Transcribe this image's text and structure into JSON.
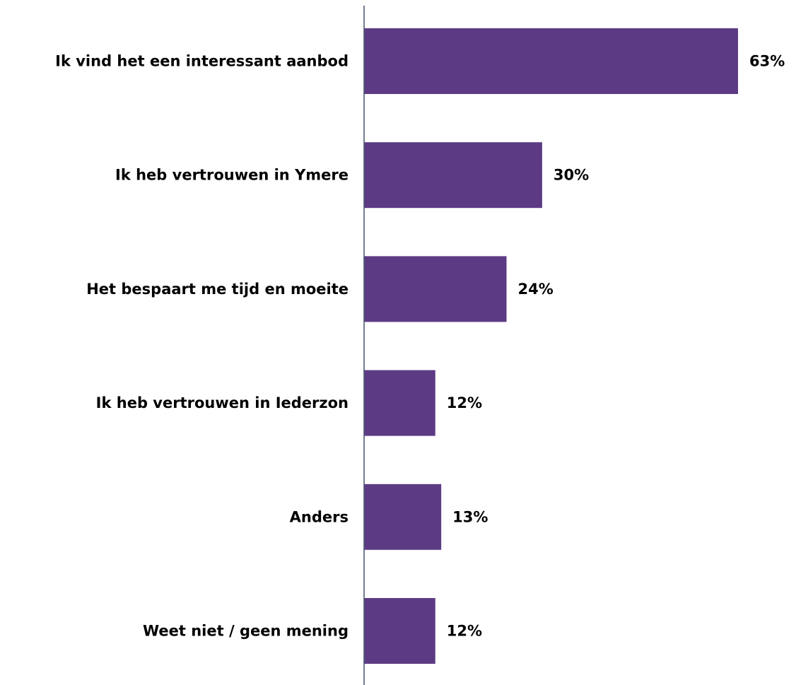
{
  "chart_data": {
    "type": "bar",
    "orientation": "horizontal",
    "categories": [
      "Ik vind het een interessant aanbod",
      "Ik heb vertrouwen in Ymere",
      "Het bespaart me tijd en moeite",
      "Ik heb vertrouwen in Iederzon",
      "Anders",
      "Weet niet / geen mening"
    ],
    "values": [
      63,
      30,
      24,
      12,
      13,
      12
    ],
    "value_labels": [
      "63%",
      "30%",
      "24%",
      "12%",
      "13%",
      "12%"
    ],
    "unit": "%",
    "title": "",
    "xlabel": "",
    "ylabel": "",
    "xlim": [
      0,
      63
    ],
    "grid": false,
    "legend": "none",
    "colors": {
      "bar": "#5c3b84",
      "axis": "#44546a",
      "text": "#000000"
    }
  }
}
